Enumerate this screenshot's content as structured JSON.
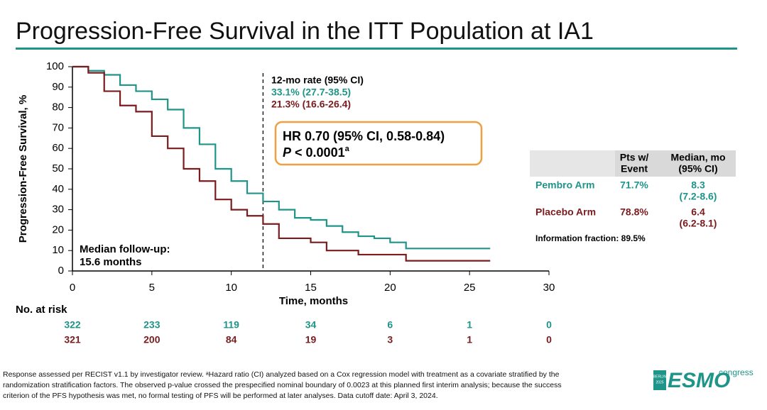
{
  "title": "Progression-Free Survival in the ITT Population at IA1",
  "chart_data": {
    "type": "step",
    "x_label": "Time, months",
    "y_label": "Progression-Free Survival, %",
    "xlim": [
      0,
      30
    ],
    "xticks": [
      0,
      5,
      10,
      15,
      20,
      25,
      30
    ],
    "ylim": [
      0,
      100
    ],
    "yticks": [
      0,
      10,
      20,
      30,
      40,
      50,
      60,
      70,
      80,
      90,
      100
    ],
    "x": [
      0,
      1,
      2,
      3,
      4,
      5,
      6,
      7,
      8,
      9,
      10,
      11,
      12,
      13,
      14,
      15,
      16,
      17,
      18,
      19,
      20,
      21,
      22,
      23,
      24,
      25,
      26,
      26.3
    ],
    "series": [
      {
        "name": "Pembro Arm",
        "color": "#1f9488",
        "values": [
          100,
          98,
          96,
          91,
          88,
          84,
          79,
          70,
          62,
          50,
          44,
          38,
          34,
          30,
          26,
          25,
          22,
          19,
          17,
          16,
          14,
          11,
          11,
          11,
          11,
          11,
          11,
          11
        ]
      },
      {
        "name": "Placebo Arm",
        "color": "#7a1c1e",
        "values": [
          100,
          97,
          88,
          81,
          78,
          66,
          60,
          50,
          44,
          35,
          30,
          27,
          23,
          16,
          16,
          14,
          10,
          10,
          8,
          8,
          8,
          5,
          5,
          5,
          5,
          5,
          5,
          5
        ]
      }
    ],
    "reference_x": 12,
    "rate_title": "12-mo rate (95% CI)",
    "rate_labels": [
      "33.1% (27.7-38.5)",
      "21.3% (16.6-26.4)"
    ],
    "hr_line": "HR 0.70 (95% CI, 0.58-0.84)",
    "p_italic": "P",
    "p_rest": " < 0.0001",
    "p_sup": "a",
    "follow_up": [
      "Median follow-up:",
      "15.6 months"
    ]
  },
  "risk_table": {
    "label": "No. at risk",
    "rows": [
      [
        "322",
        "233",
        "119",
        "34",
        "6",
        "1",
        "0"
      ],
      [
        "321",
        "200",
        "84",
        "19",
        "3",
        "1",
        "0"
      ]
    ]
  },
  "summary_table": {
    "headers": [
      [
        "Pts w/",
        "Event"
      ],
      [
        "Median, mo",
        "(95% CI)"
      ]
    ],
    "rows": [
      {
        "label": "Pembro Arm",
        "event": "71.7%",
        "median": "8.3",
        "ci": "(7.2-8.6)"
      },
      {
        "label": "Placebo Arm",
        "event": "78.8%",
        "median": "6.4",
        "ci": "(6.2-8.1)"
      }
    ],
    "note": "Information fraction: 89.5%"
  },
  "footnote": [
    "Response assessed per RECIST v1.1 by investigator review. ᵃHazard ratio (CI) analyzed based on a Cox regression model with treatment as a covariate stratified by the",
    "randomization stratification factors. The observed p-value crossed the prespecified nominal boundary of 0.0023 at this planned first interim analysis; because the success",
    "criterion of the PFS hypothesis was met, no formal testing of PFS will be performed at later analyses. Data cutoff date: April 3, 2024."
  ],
  "logo": {
    "city": "BERLIN",
    "year": "2025",
    "name": "ESMO",
    "word": "congress"
  }
}
